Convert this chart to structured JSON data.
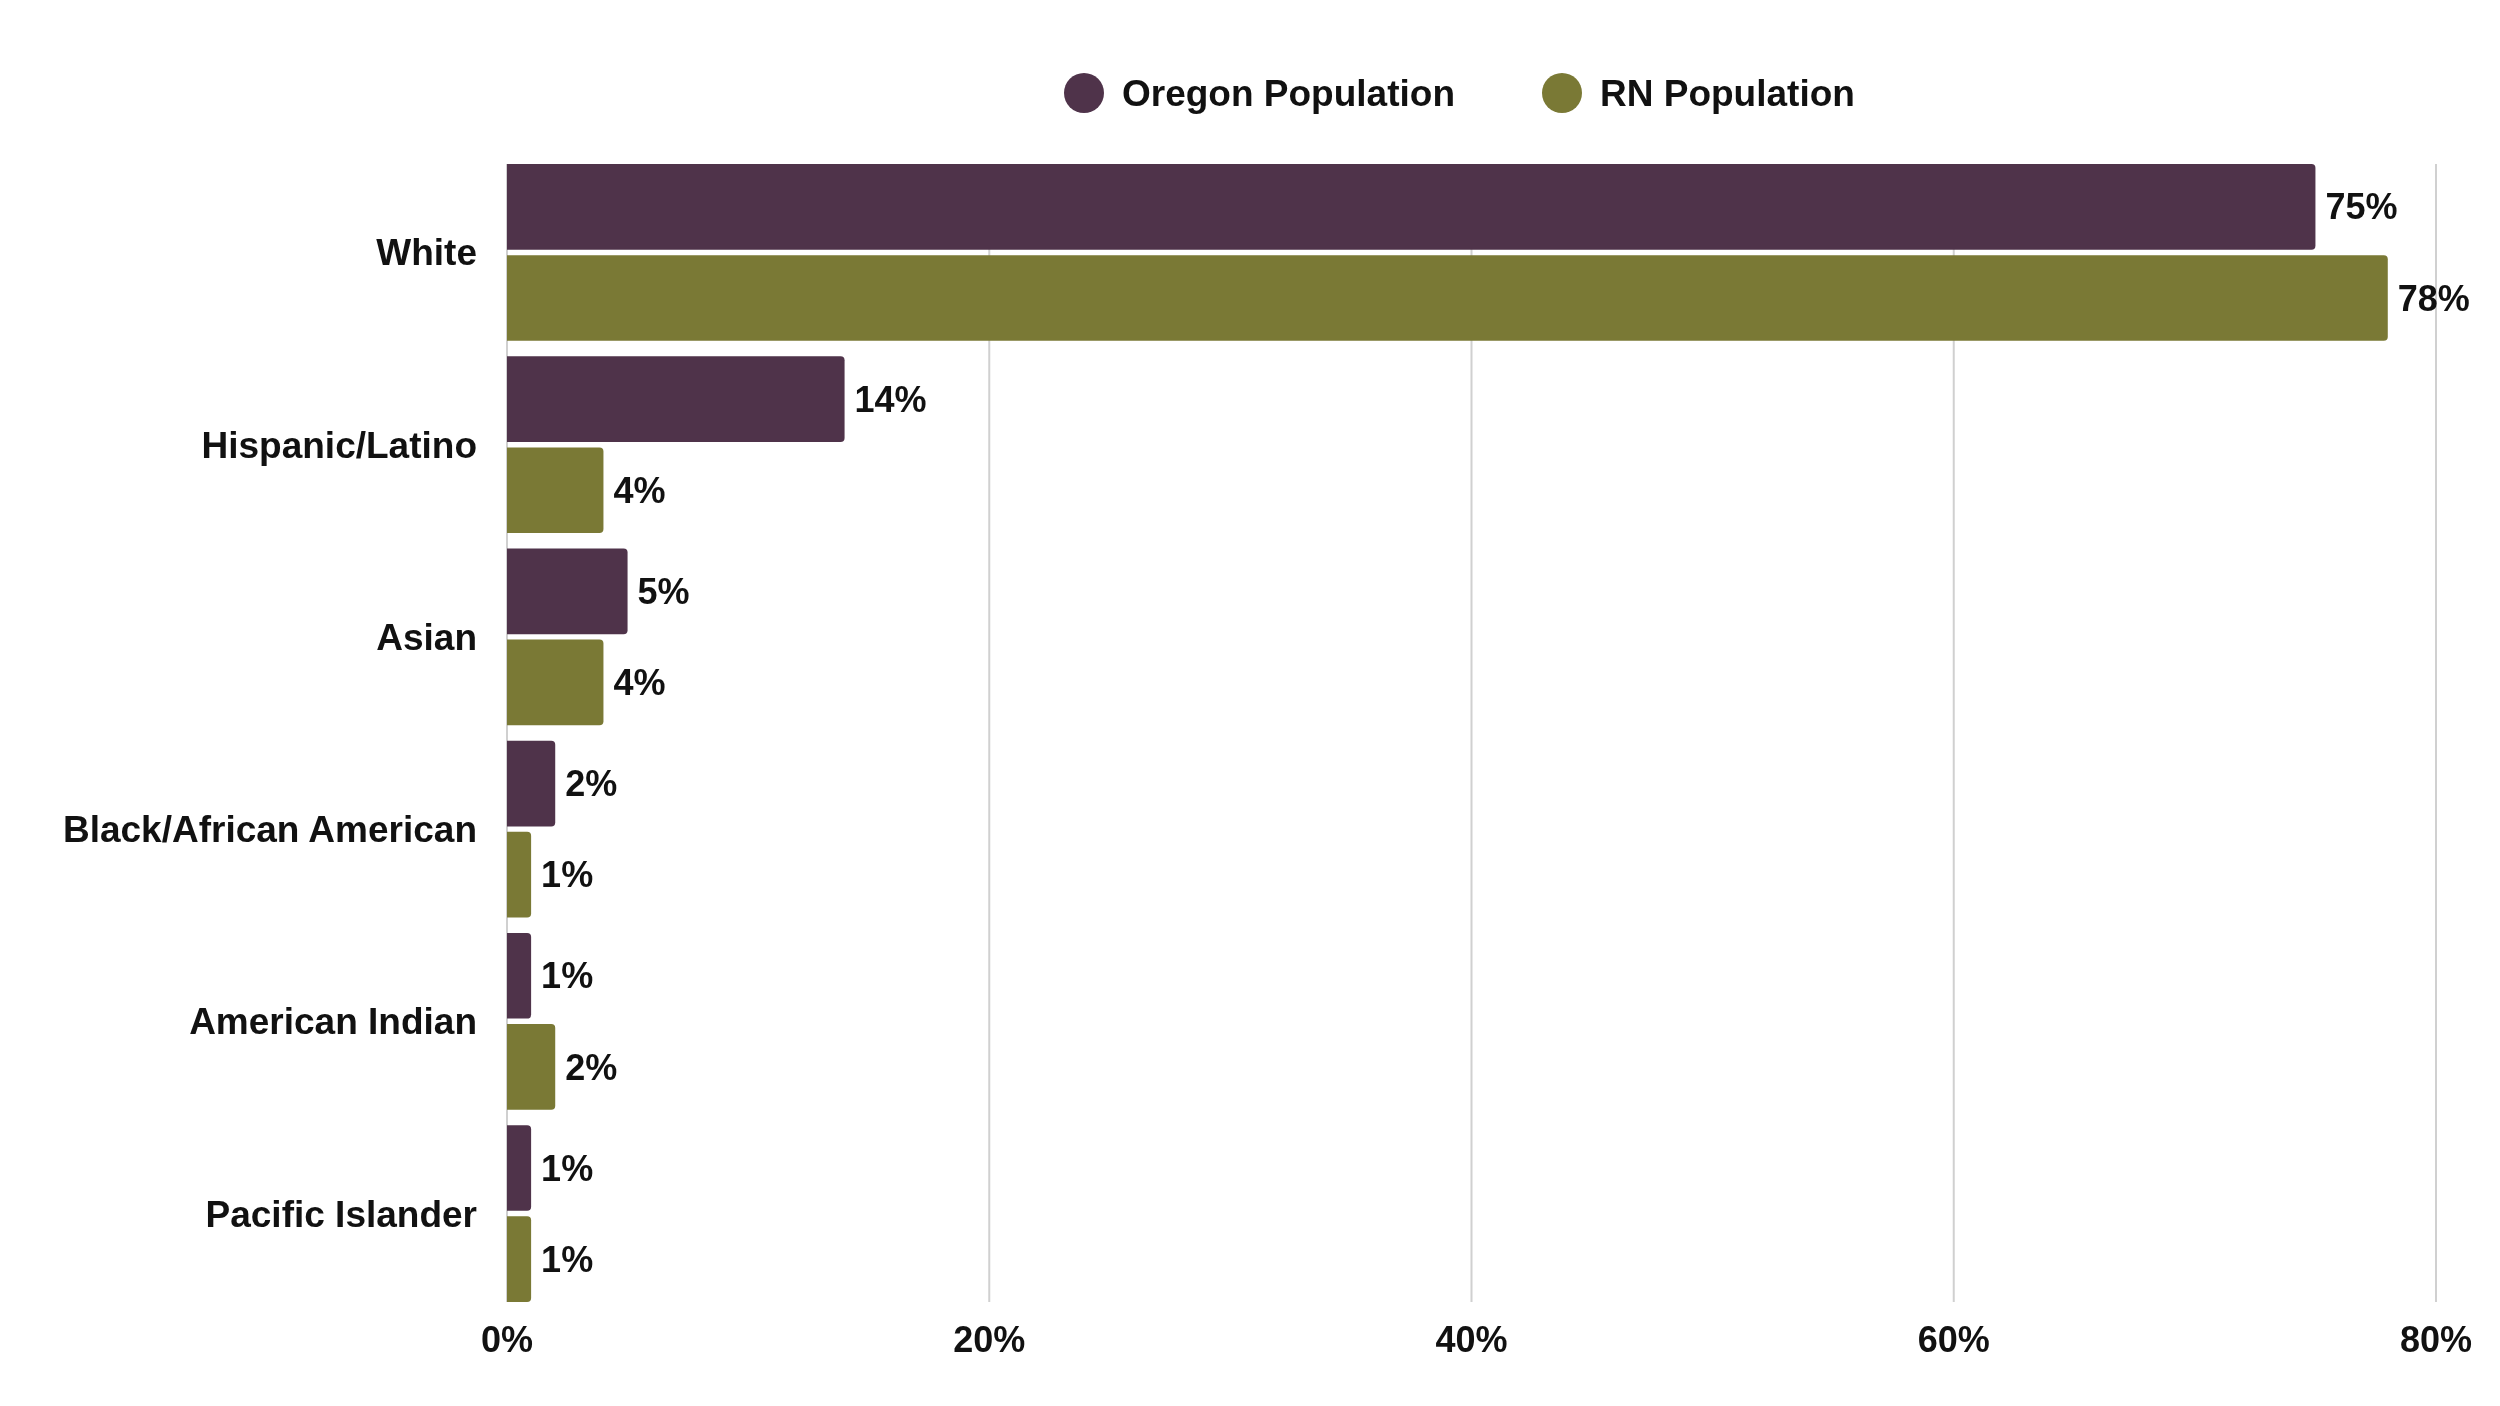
{
  "chart_data": {
    "type": "bar",
    "orientation": "horizontal",
    "categories": [
      "White",
      "Hispanic/Latino",
      "Asian",
      "Black/African American",
      "American Indian",
      "Pacific Islander"
    ],
    "series": [
      {
        "name": "Oregon Population",
        "color": "#4f334a",
        "values": [
          75,
          14,
          5,
          2,
          1,
          1
        ],
        "value_labels": [
          "75%",
          "14%",
          "5%",
          "2%",
          "1%",
          "1%"
        ]
      },
      {
        "name": "RN Population",
        "color": "#7a7935",
        "values": [
          78,
          4,
          4,
          1,
          2,
          1
        ],
        "value_labels": [
          "78%",
          "4%",
          "4%",
          "1%",
          "2%",
          "1%"
        ]
      }
    ],
    "xlim": [
      0,
      80
    ],
    "xticks": [
      {
        "value": 0,
        "label": "0%"
      },
      {
        "value": 20,
        "label": "20%"
      },
      {
        "value": 40,
        "label": "40%"
      },
      {
        "value": 60,
        "label": "60%"
      },
      {
        "value": 80,
        "label": "80%"
      }
    ],
    "grid": "x",
    "legend": "top"
  }
}
